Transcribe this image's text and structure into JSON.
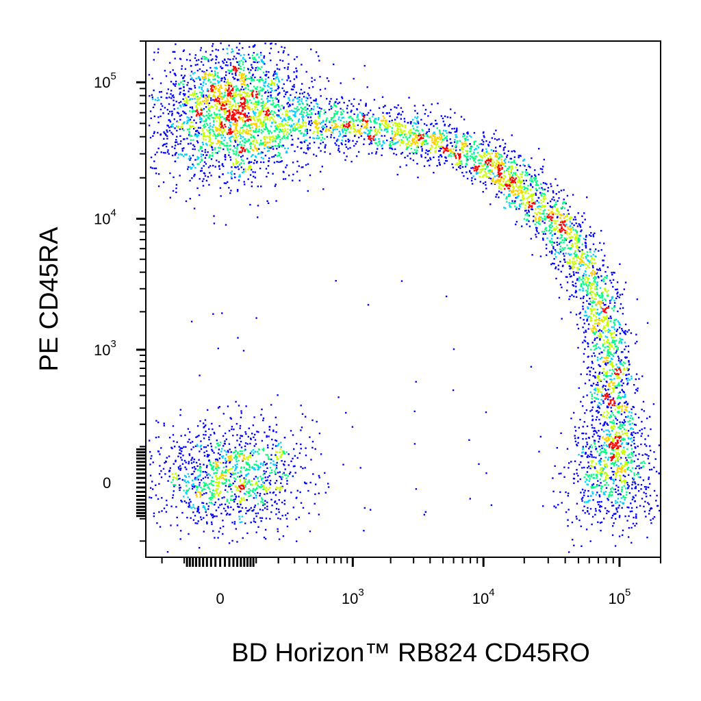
{
  "chart_data": {
    "type": "scatter",
    "title": "",
    "xlabel": "BD Horizon™ RB824 CD45RO",
    "ylabel": "PE CD45RA",
    "x_scale": "biexponential",
    "y_scale": "biexponential",
    "xlim": [
      -300,
      200000
    ],
    "ylim": [
      -300,
      200000
    ],
    "x_ticks": [
      {
        "value": 0,
        "base": "0",
        "exp": ""
      },
      {
        "value": 1000,
        "base": "10",
        "exp": "3"
      },
      {
        "value": 10000,
        "base": "10",
        "exp": "4"
      },
      {
        "value": 100000,
        "base": "10",
        "exp": "5"
      }
    ],
    "y_ticks": [
      {
        "value": 100000,
        "base": "10",
        "exp": "5"
      },
      {
        "value": 10000,
        "base": "10",
        "exp": "4"
      },
      {
        "value": 1000,
        "base": "10",
        "exp": "3"
      },
      {
        "value": 0,
        "base": "0",
        "exp": ""
      }
    ],
    "color_scale": [
      "#0000ff",
      "#00d0ff",
      "#00ff80",
      "#c8ff00",
      "#ffd000",
      "#ff0000"
    ],
    "populations": [
      {
        "x_center": 30,
        "y_center": 60000,
        "x_spread": 0.55,
        "y_spread": 0.45,
        "count": 2400
      },
      {
        "x_center": 20,
        "y_center": 20,
        "x_spread": 0.5,
        "y_spread": 0.35,
        "count": 1200
      },
      {
        "x_center": 90000,
        "y_center": 20,
        "x_spread": 0.35,
        "y_spread": 0.35,
        "count": 650
      }
    ],
    "arc": {
      "from": [
        300,
        50000
      ],
      "to": [
        90000,
        50
      ],
      "count": 3400
    },
    "grid": false,
    "legend": "none"
  }
}
